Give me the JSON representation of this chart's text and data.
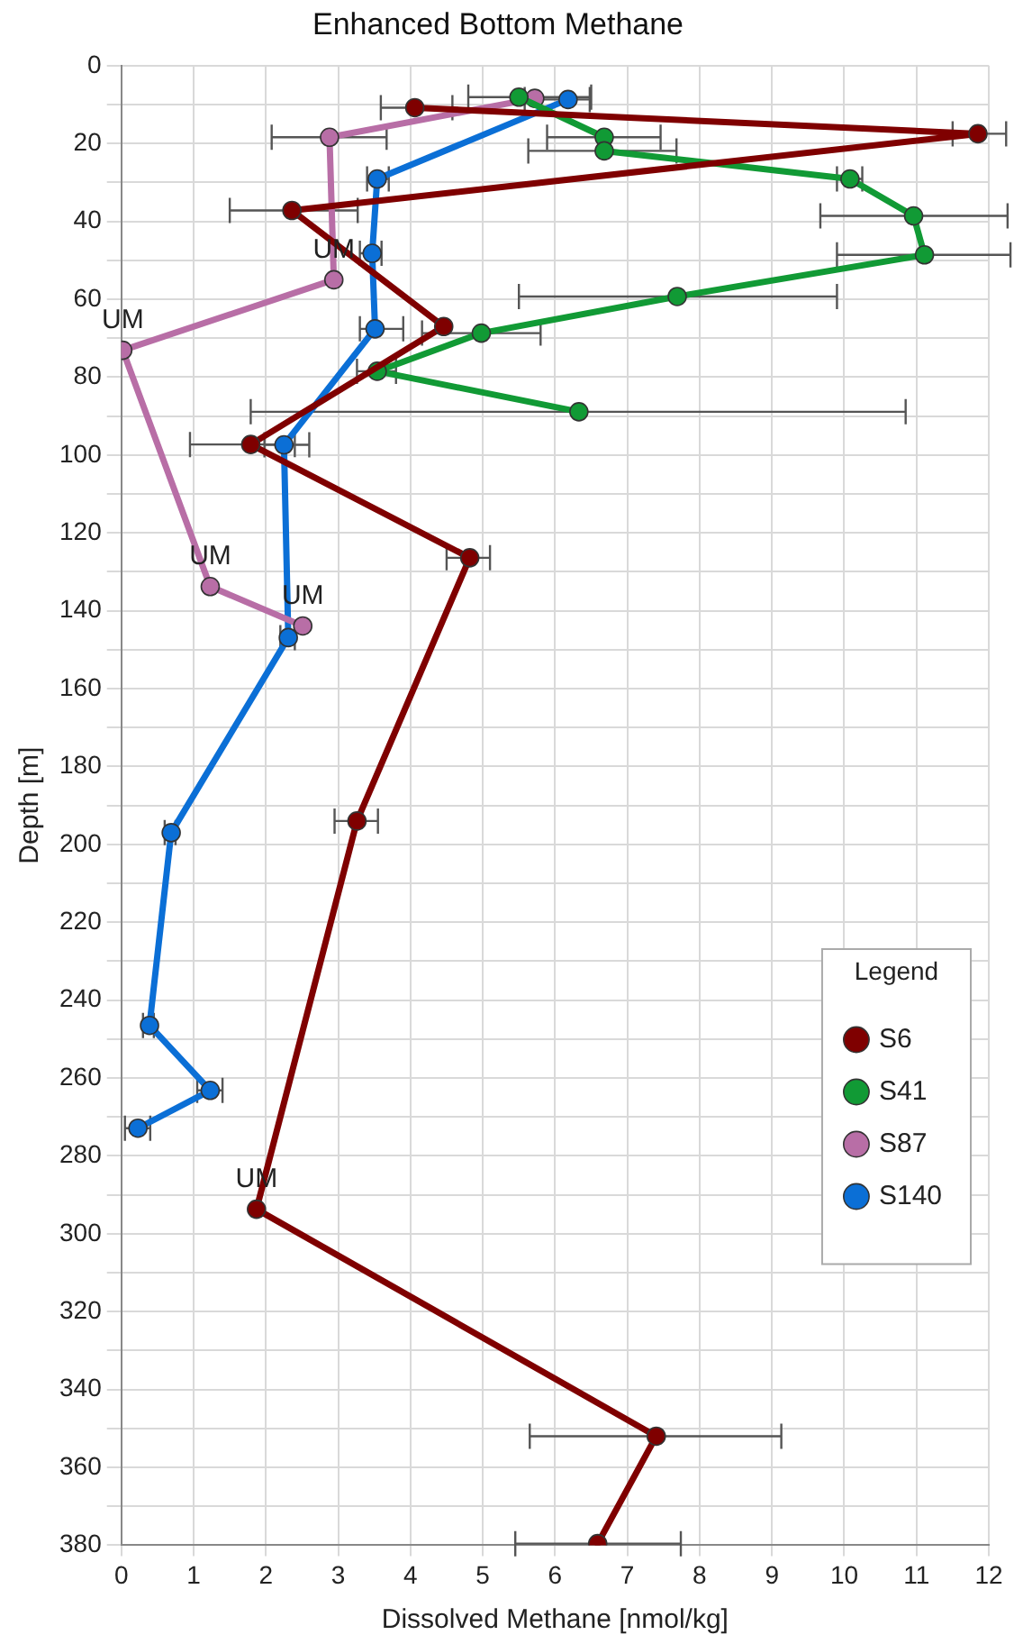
{
  "chart_data": {
    "type": "line",
    "title": "Enhanced Bottom Methane",
    "xlabel": "Dissolved Methane [nmol/kg]",
    "ylabel": "Depth [m]",
    "xlim": [
      0,
      12
    ],
    "xticks": [
      0,
      1,
      2,
      3,
      4,
      5,
      6,
      7,
      8,
      9,
      10,
      11,
      12
    ],
    "ylim": [
      380,
      0
    ],
    "yticks": [
      0,
      {
        "value": 10,
        "label": null
      },
      20,
      {
        "value": 30,
        "label": null
      },
      40,
      {
        "value": 50,
        "label": null
      },
      60,
      {
        "value": 70,
        "label": null
      },
      80,
      {
        "value": 90,
        "label": null
      },
      100,
      {
        "value": 110,
        "label": null
      },
      120,
      {
        "value": 130,
        "label": null
      },
      140,
      {
        "value": 150,
        "label": null
      },
      160,
      {
        "value": 170,
        "label": null
      },
      180,
      {
        "value": 190,
        "label": null
      },
      200,
      {
        "value": 210,
        "label": null
      },
      220,
      {
        "value": 230,
        "label": null
      },
      240,
      {
        "value": 250,
        "label": null
      },
      260,
      {
        "value": 270,
        "label": null
      },
      280,
      {
        "value": 290,
        "label": null
      },
      300,
      {
        "value": 310,
        "label": null
      },
      320,
      {
        "value": 330,
        "label": null
      },
      340,
      {
        "value": 350,
        "label": null
      },
      360,
      {
        "value": 370,
        "label": null
      },
      380
    ],
    "grid": true,
    "legend": "bottom right",
    "legend_title": "Legend",
    "marker": "circle",
    "line_style": "solid",
    "series": [
      {
        "name": "S6",
        "color": "#7f0000",
        "x": [
          4.06,
          11.85,
          2.36,
          4.46,
          1.79,
          4.82,
          3.26,
          1.87,
          7.4,
          6.59
        ],
        "values": [
          10.8,
          17.5,
          37.2,
          67,
          97.3,
          126.4,
          194,
          293.7,
          352,
          379.6
        ],
        "xerrors": [
          [
            3.59,
            4.58
          ],
          [
            11.5,
            12.24
          ],
          [
            1.5,
            3.27
          ],
          null,
          [
            0.95,
            2.4
          ],
          [
            4.5,
            5.1
          ],
          [
            2.95,
            3.55
          ],
          null,
          [
            5.65,
            9.13
          ],
          [
            5.45,
            7.74
          ]
        ]
      },
      {
        "name": "S41",
        "color": "#119a35",
        "x": [
          5.5,
          6.68,
          6.68,
          10.08,
          10.96,
          11.11,
          7.69,
          4.98,
          3.54,
          6.33
        ],
        "values": [
          8.1,
          18.4,
          21.9,
          29.1,
          38.6,
          48.6,
          59.3,
          68.7,
          78.5,
          88.9
        ],
        "xerrors": [
          [
            4.8,
            6.5
          ],
          [
            5.89,
            7.46
          ],
          [
            5.63,
            7.68
          ],
          [
            9.9,
            10.25
          ],
          [
            9.67,
            12.26
          ],
          [
            9.9,
            12.3
          ],
          [
            5.5,
            9.9
          ],
          [
            4.16,
            5.8
          ],
          [
            3.26,
            3.8
          ],
          [
            1.79,
            10.85
          ]
        ]
      },
      {
        "name": "S87",
        "color": "#b86ea6",
        "x": [
          5.72,
          2.88,
          2.94,
          0.02,
          1.23,
          2.51
        ],
        "values": [
          8.4,
          18.4,
          55,
          73.1,
          133.8,
          143.9
        ],
        "xerrors": [
          null,
          [
            2.08,
            3.67
          ],
          null,
          null,
          null,
          null
        ]
      },
      {
        "name": "S140",
        "color": "#0b6fd6",
        "x": [
          6.18,
          3.54,
          3.47,
          3.51,
          2.25,
          2.31,
          0.69,
          0.39,
          1.23,
          0.23
        ],
        "values": [
          8.7,
          29.1,
          48.2,
          67.6,
          97.4,
          146.9,
          197,
          246.5,
          263.2,
          272.9
        ],
        "xerrors": [
          [
            5.58,
            6.48
          ],
          [
            3.4,
            3.7
          ],
          [
            3.3,
            3.6
          ],
          [
            3.3,
            3.9
          ],
          [
            1.98,
            2.6
          ],
          [
            2.2,
            2.4
          ],
          [
            0.6,
            0.75
          ],
          [
            0.3,
            0.45
          ],
          [
            1.05,
            1.4
          ],
          [
            0.05,
            0.4
          ]
        ]
      }
    ],
    "annotations": [
      {
        "text": "UM",
        "x": 2.94,
        "y": 55
      },
      {
        "text": "UM",
        "x": 0.02,
        "y": 73.1
      },
      {
        "text": "UM",
        "x": 1.23,
        "y": 133.8
      },
      {
        "text": "UM",
        "x": 2.51,
        "y": 143.9
      },
      {
        "text": "UM",
        "x": 1.87,
        "y": 293.7
      }
    ]
  }
}
